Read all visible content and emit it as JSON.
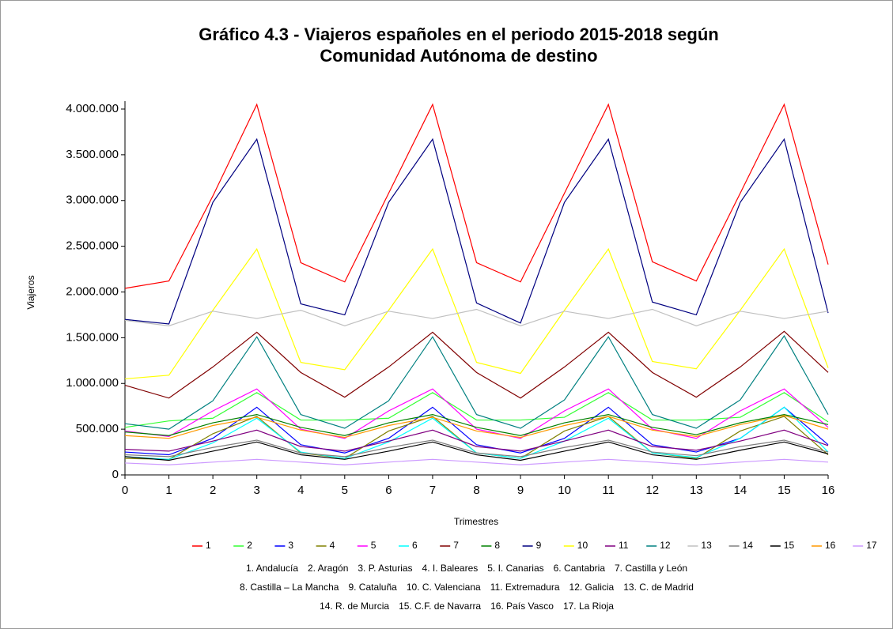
{
  "chart_data": {
    "type": "line",
    "title": [
      "Gráfico 4.3 - Viajeros españoles en el periodo 2015-2018 según",
      "Comunidad Autónoma de destino"
    ],
    "xlabel": "Trimestres",
    "ylabel": "Viajeros",
    "x": [
      0,
      1,
      2,
      3,
      4,
      5,
      6,
      7,
      8,
      9,
      10,
      11,
      12,
      13,
      14,
      15,
      16
    ],
    "xlim": [
      0,
      16
    ],
    "xticks": [
      0,
      1,
      2,
      3,
      4,
      5,
      6,
      7,
      8,
      9,
      10,
      11,
      12,
      13,
      14,
      15,
      16
    ],
    "ylim": [
      0,
      4000000
    ],
    "yticks": [
      0,
      {
        "value": 500000,
        "label": "500.000"
      },
      {
        "value": 1000000,
        "label": "1.000.000"
      },
      {
        "value": 1500000,
        "label": "1.500.000"
      },
      {
        "value": 2000000,
        "label": "2.000.000"
      },
      {
        "value": 2500000,
        "label": "2.500.000"
      },
      {
        "value": 3000000,
        "label": "3.000.000"
      },
      {
        "value": 3500000,
        "label": "3.500.000"
      },
      {
        "value": 4000000,
        "label": "4.000.000"
      }
    ],
    "grid": false,
    "series": [
      {
        "name": "1",
        "color": "#ff0000",
        "values": [
          2040000,
          2120000,
          3050000,
          4050000,
          2320000,
          2110000,
          3080000,
          4050000,
          2320000,
          2110000,
          3080000,
          4050000,
          2330000,
          2120000,
          3080000,
          4050000,
          2300000
        ]
      },
      {
        "name": "2",
        "color": "#33ff33",
        "values": [
          520000,
          590000,
          620000,
          900000,
          600000,
          600000,
          620000,
          900000,
          600000,
          600000,
          630000,
          900000,
          600000,
          600000,
          630000,
          900000,
          580000
        ]
      },
      {
        "name": "3",
        "color": "#0000ff",
        "values": [
          250000,
          220000,
          400000,
          740000,
          330000,
          240000,
          400000,
          740000,
          330000,
          240000,
          400000,
          740000,
          330000,
          250000,
          400000,
          740000,
          330000
        ]
      },
      {
        "name": "4",
        "color": "#808000",
        "values": [
          180000,
          170000,
          450000,
          640000,
          240000,
          180000,
          480000,
          640000,
          240000,
          180000,
          480000,
          640000,
          240000,
          180000,
          480000,
          640000,
          220000
        ]
      },
      {
        "name": "5",
        "color": "#ff00ff",
        "values": [
          480000,
          420000,
          700000,
          940000,
          500000,
          400000,
          700000,
          940000,
          500000,
          400000,
          700000,
          940000,
          500000,
          400000,
          700000,
          940000,
          520000
        ]
      },
      {
        "name": "6",
        "color": "#00ffff",
        "values": [
          200000,
          170000,
          350000,
          620000,
          250000,
          180000,
          360000,
          620000,
          240000,
          180000,
          370000,
          620000,
          240000,
          190000,
          400000,
          740000,
          250000
        ]
      },
      {
        "name": "7",
        "color": "#800000",
        "values": [
          980000,
          840000,
          1180000,
          1560000,
          1120000,
          850000,
          1180000,
          1560000,
          1120000,
          840000,
          1180000,
          1560000,
          1120000,
          850000,
          1180000,
          1570000,
          1120000
        ]
      },
      {
        "name": "8",
        "color": "#008000",
        "values": [
          470000,
          430000,
          570000,
          660000,
          520000,
          430000,
          570000,
          660000,
          520000,
          430000,
          570000,
          660000,
          520000,
          440000,
          570000,
          660000,
          550000
        ]
      },
      {
        "name": "9",
        "color": "#000080",
        "values": [
          1700000,
          1650000,
          2980000,
          3670000,
          1870000,
          1750000,
          2980000,
          3670000,
          1880000,
          1660000,
          2980000,
          3670000,
          1890000,
          1750000,
          2980000,
          3670000,
          1770000
        ]
      },
      {
        "name": "10",
        "color": "#ffff00",
        "values": [
          1050000,
          1090000,
          1800000,
          2470000,
          1230000,
          1150000,
          1800000,
          2470000,
          1230000,
          1110000,
          1800000,
          2470000,
          1240000,
          1160000,
          1800000,
          2470000,
          1170000
        ]
      },
      {
        "name": "11",
        "color": "#800080",
        "values": [
          280000,
          260000,
          370000,
          490000,
          310000,
          260000,
          370000,
          490000,
          310000,
          260000,
          370000,
          490000,
          310000,
          270000,
          370000,
          490000,
          320000
        ]
      },
      {
        "name": "12",
        "color": "#008080",
        "values": [
          560000,
          500000,
          810000,
          1510000,
          660000,
          510000,
          810000,
          1510000,
          660000,
          510000,
          820000,
          1510000,
          660000,
          510000,
          820000,
          1520000,
          660000
        ]
      },
      {
        "name": "13",
        "color": "#c0c0c0",
        "values": [
          1690000,
          1630000,
          1790000,
          1710000,
          1800000,
          1630000,
          1790000,
          1710000,
          1810000,
          1630000,
          1790000,
          1710000,
          1810000,
          1630000,
          1790000,
          1710000,
          1790000
        ]
      },
      {
        "name": "14",
        "color": "#808080",
        "values": [
          220000,
          200000,
          300000,
          380000,
          240000,
          200000,
          300000,
          380000,
          240000,
          200000,
          300000,
          380000,
          250000,
          210000,
          310000,
          380000,
          250000
        ]
      },
      {
        "name": "15",
        "color": "#000000",
        "values": [
          200000,
          160000,
          260000,
          360000,
          220000,
          170000,
          260000,
          360000,
          220000,
          160000,
          260000,
          360000,
          220000,
          170000,
          270000,
          360000,
          230000
        ]
      },
      {
        "name": "16",
        "color": "#ff9900",
        "values": [
          430000,
          400000,
          540000,
          630000,
          490000,
          410000,
          540000,
          630000,
          480000,
          410000,
          540000,
          640000,
          490000,
          420000,
          550000,
          650000,
          500000
        ]
      },
      {
        "name": "17",
        "color": "#cc99ff",
        "values": [
          130000,
          110000,
          140000,
          170000,
          140000,
          110000,
          140000,
          170000,
          140000,
          110000,
          140000,
          170000,
          140000,
          110000,
          140000,
          170000,
          140000
        ]
      }
    ],
    "notes": [
      [
        "1. Andalucía",
        "2. Aragón",
        "3. P. Asturias",
        "4. I. Baleares",
        "5. I. Canarias",
        "6. Cantabria",
        "7. Castilla y León"
      ],
      [
        "8. Castilla – La Mancha",
        "9. Cataluña",
        "10. C. Valenciana",
        "11. Extremadura",
        "12. Galicia",
        "13. C. de Madrid"
      ],
      [
        "14. R. de Murcia",
        "15. C.F. de Navarra",
        "16. País Vasco",
        "17. La Rioja"
      ]
    ]
  }
}
